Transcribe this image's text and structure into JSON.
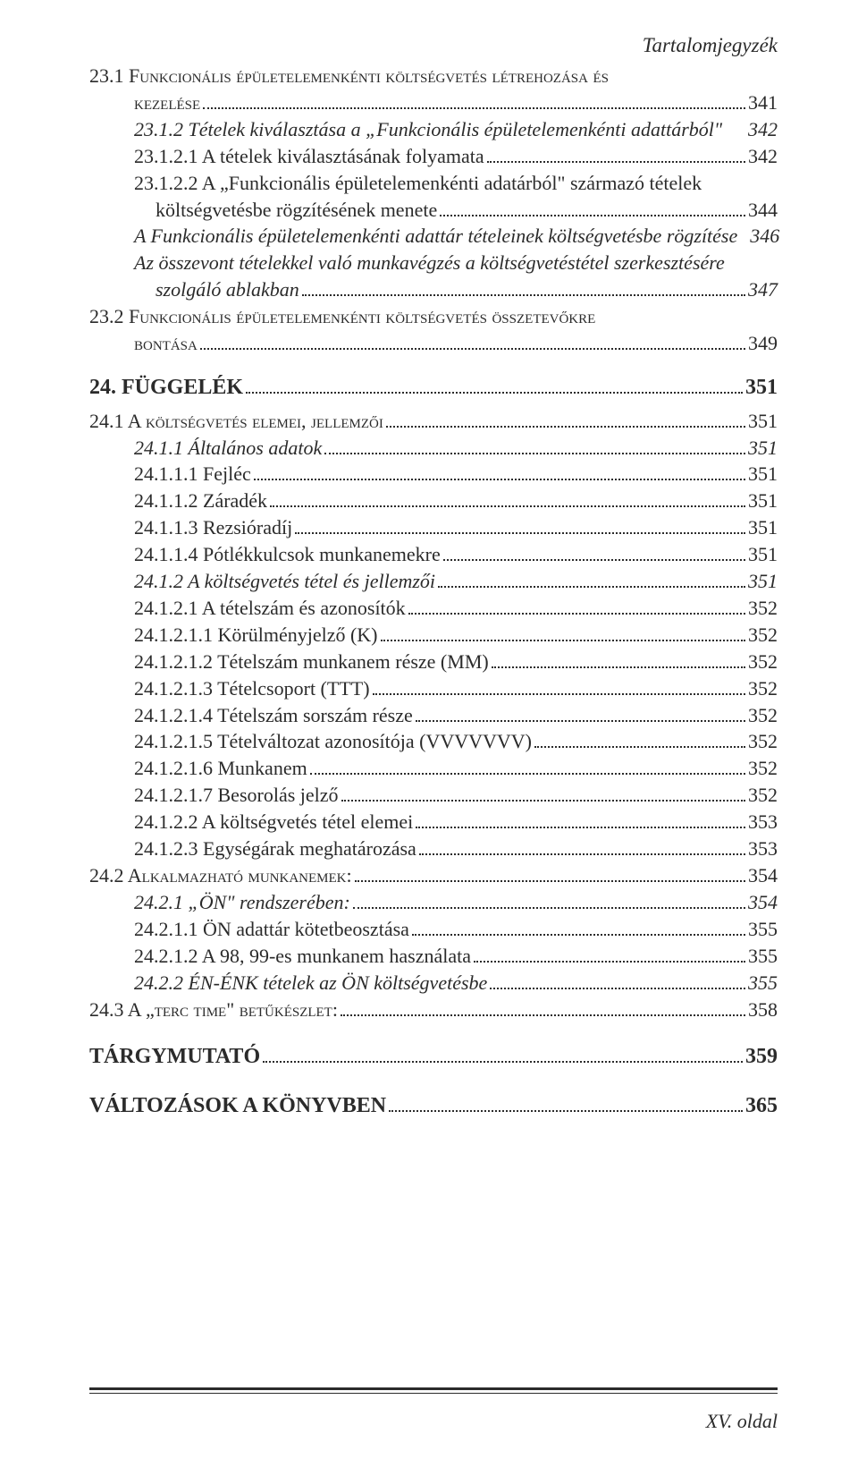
{
  "header": {
    "title": "Tartalomjegyzék"
  },
  "toc": [
    {
      "t": "l1",
      "ind": 0,
      "style": "sc",
      "label": "23.1 Funkcionális épületelemenkénti költségvetés létrehozása és",
      "page": "",
      "noleader": true
    },
    {
      "t": "l1c",
      "ind": 1,
      "style": "sc",
      "label": "kezelése",
      "page": "341"
    },
    {
      "t": "l2",
      "ind": 1,
      "style": "it",
      "label": "23.1.2 Tételek kiválasztása a „Funkcionális épületelemenkénti adattárból\"",
      "page": "342",
      "noleader": true
    },
    {
      "t": "l3",
      "ind": 1,
      "style": "",
      "label": "23.1.2.1 A tételek kiválasztásának folyamata",
      "page": "342"
    },
    {
      "t": "l3",
      "ind": 1,
      "style": "",
      "label": "23.1.2.2 A „Funkcionális épületelemenkénti adatárból\" származó tételek",
      "page": "",
      "noleader": true
    },
    {
      "t": "l3c",
      "ind": 2,
      "style": "",
      "label": "költségvetésbe rögzítésének menete",
      "page": "344"
    },
    {
      "t": "l3",
      "ind": 1,
      "style": "it",
      "label": "A Funkcionális épületelemenkénti adattár tételeinek költségvetésbe rögzítése",
      "page": "346",
      "noleader": true
    },
    {
      "t": "l3",
      "ind": 1,
      "style": "it",
      "label": "Az összevont tételekkel való munkavégzés a költségvetéstétel szerkesztésére",
      "page": "",
      "noleader": true
    },
    {
      "t": "l3c",
      "ind": 2,
      "style": "it",
      "label": "szolgáló ablakban",
      "page": "347"
    },
    {
      "t": "l1",
      "ind": 0,
      "style": "sc",
      "label": "23.2 Funkcionális épületelemenkénti költségvetés összetevőkre",
      "page": "",
      "noleader": true
    },
    {
      "t": "l1c",
      "ind": 1,
      "style": "sc",
      "label": "bontása",
      "page": "349"
    },
    {
      "t": "ch",
      "ind": 0,
      "style": "b",
      "label": "24. FÜGGELÉK",
      "page": "351"
    },
    {
      "t": "l1",
      "ind": 0,
      "style": "sc",
      "label": "24.1 A költségvetés elemei, jellemzői",
      "page": "351"
    },
    {
      "t": "l2",
      "ind": 1,
      "style": "it",
      "label": "24.1.1 Általános adatok",
      "page": "351"
    },
    {
      "t": "l3",
      "ind": 1,
      "style": "",
      "label": "24.1.1.1 Fejléc",
      "page": "351"
    },
    {
      "t": "l3",
      "ind": 1,
      "style": "",
      "label": "24.1.1.2 Záradék",
      "page": "351"
    },
    {
      "t": "l3",
      "ind": 1,
      "style": "",
      "label": "24.1.1.3 Rezsióradíj",
      "page": "351"
    },
    {
      "t": "l3",
      "ind": 1,
      "style": "",
      "label": "24.1.1.4 Pótlékkulcsok munkanemekre",
      "page": "351"
    },
    {
      "t": "l2",
      "ind": 1,
      "style": "it",
      "label": "24.1.2 A költségvetés tétel és jellemzői",
      "page": "351"
    },
    {
      "t": "l3",
      "ind": 1,
      "style": "",
      "label": "24.1.2.1 A tételszám és azonosítók",
      "page": "352"
    },
    {
      "t": "l3",
      "ind": 1,
      "style": "",
      "label": "24.1.2.1.1 Körülményjelző (K)",
      "page": "352"
    },
    {
      "t": "l3",
      "ind": 1,
      "style": "",
      "label": "24.1.2.1.2 Tételszám munkanem része (MM)",
      "page": "352"
    },
    {
      "t": "l3",
      "ind": 1,
      "style": "",
      "label": "24.1.2.1.3 Tételcsoport (TTT)",
      "page": "352"
    },
    {
      "t": "l3",
      "ind": 1,
      "style": "",
      "label": "24.1.2.1.4 Tételszám sorszám része",
      "page": "352"
    },
    {
      "t": "l3",
      "ind": 1,
      "style": "",
      "label": "24.1.2.1.5 Tételváltozat azonosítója (VVVVVVV)",
      "page": "352"
    },
    {
      "t": "l3",
      "ind": 1,
      "style": "",
      "label": "24.1.2.1.6 Munkanem",
      "page": "352"
    },
    {
      "t": "l3",
      "ind": 1,
      "style": "",
      "label": "24.1.2.1.7 Besorolás jelző",
      "page": "352"
    },
    {
      "t": "l3",
      "ind": 1,
      "style": "",
      "label": "24.1.2.2 A költségvetés tétel elemei",
      "page": "353"
    },
    {
      "t": "l3",
      "ind": 1,
      "style": "",
      "label": "24.1.2.3 Egységárak meghatározása",
      "page": "353"
    },
    {
      "t": "l1",
      "ind": 0,
      "style": "sc",
      "label": "24.2 Alkalmazható munkanemek:",
      "page": "354"
    },
    {
      "t": "l2",
      "ind": 1,
      "style": "it",
      "label": "24.2.1 „ÖN\" rendszerében:",
      "page": "354"
    },
    {
      "t": "l3",
      "ind": 1,
      "style": "",
      "label": "24.2.1.1 ÖN adattár kötetbeosztása",
      "page": "355"
    },
    {
      "t": "l3",
      "ind": 1,
      "style": "",
      "label": "24.2.1.2 A 98, 99-es munkanem használata",
      "page": "355"
    },
    {
      "t": "l2",
      "ind": 1,
      "style": "it",
      "label": "24.2.2 ÉN-ÉNK tételek az ÖN költségvetésbe",
      "page": "355"
    },
    {
      "t": "l1",
      "ind": 0,
      "style": "sc",
      "label": "24.3 A „terc time\" betűkészlet:",
      "page": "358"
    },
    {
      "t": "bk",
      "ind": 0,
      "style": "b",
      "label": "TÁRGYMUTATÓ",
      "page": "359"
    },
    {
      "t": "bk",
      "ind": 0,
      "style": "b",
      "label": "VÁLTOZÁSOK A KÖNYVBEN",
      "page": "365"
    }
  ],
  "footer": {
    "page_label": "XV. oldal"
  },
  "colors": {
    "text": "#2b2b2b",
    "bg": "#ffffff"
  }
}
